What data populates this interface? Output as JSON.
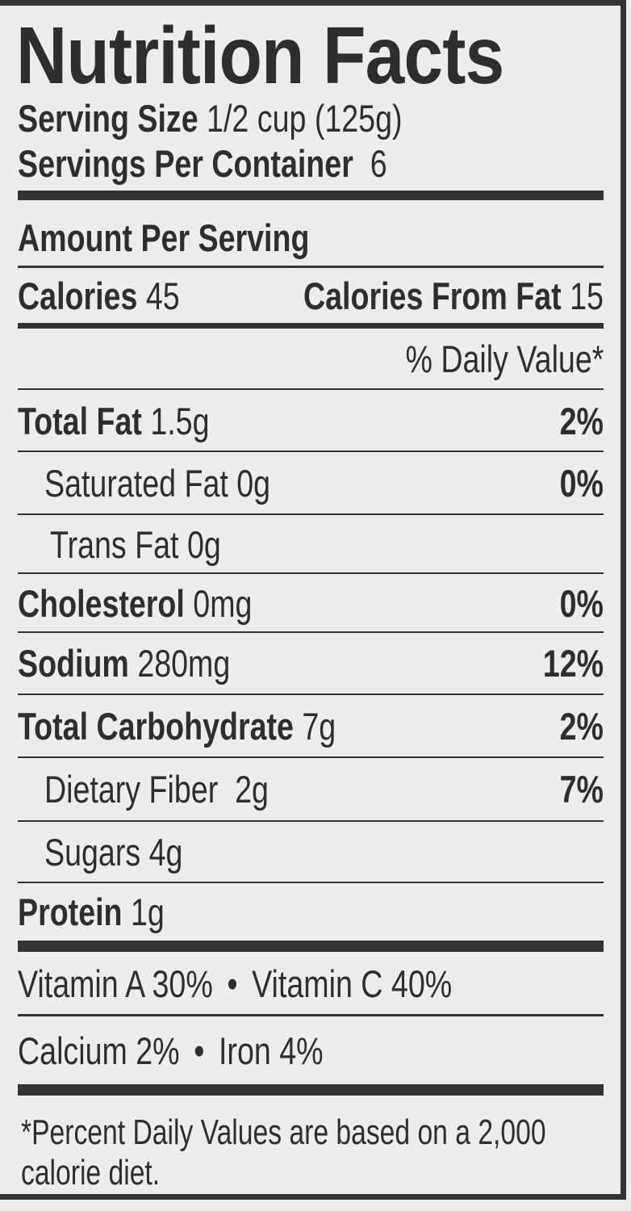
{
  "label": {
    "title": "Nutrition Facts",
    "serving_size_label": "Serving Size",
    "serving_size_value": "1/2 cup (125g)",
    "servings_per_container_label": "Servings Per Container",
    "servings_per_container_value": "6",
    "amount_per_serving": "Amount Per Serving",
    "calories_label": "Calories",
    "calories_value": "45",
    "calories_from_fat_label": "Calories From Fat",
    "calories_from_fat_value": "15",
    "daily_value_header": "% Daily Value*",
    "nutrients": [
      {
        "label": "Total Fat",
        "amount": "1.5g",
        "dv": "2%"
      },
      {
        "label": "Saturated Fat",
        "amount": "0g",
        "dv": "0%"
      },
      {
        "label": "Trans Fat",
        "amount": "0g",
        "dv": ""
      },
      {
        "label": "Cholesterol",
        "amount": "0mg",
        "dv": "0%"
      },
      {
        "label": "Sodium",
        "amount": "280mg",
        "dv": "12%"
      },
      {
        "label": "Total Carbohydrate",
        "amount": "7g",
        "dv": "2%"
      },
      {
        "label": "Dietary Fiber",
        "amount": "2g",
        "dv": "7%"
      },
      {
        "label": "Sugars",
        "amount": "4g",
        "dv": ""
      },
      {
        "label": "Protein",
        "amount": "1g",
        "dv": ""
      }
    ],
    "vitamins": [
      {
        "label": "Vitamin A",
        "dv": "30%"
      },
      {
        "label": "Vitamin C",
        "dv": "40%"
      },
      {
        "label": "Calcium",
        "dv": "2%"
      },
      {
        "label": "Iron",
        "dv": "4%"
      }
    ],
    "separator": "•",
    "footnote": "*Percent Daily Values are based on a 2,000 calorie diet."
  }
}
